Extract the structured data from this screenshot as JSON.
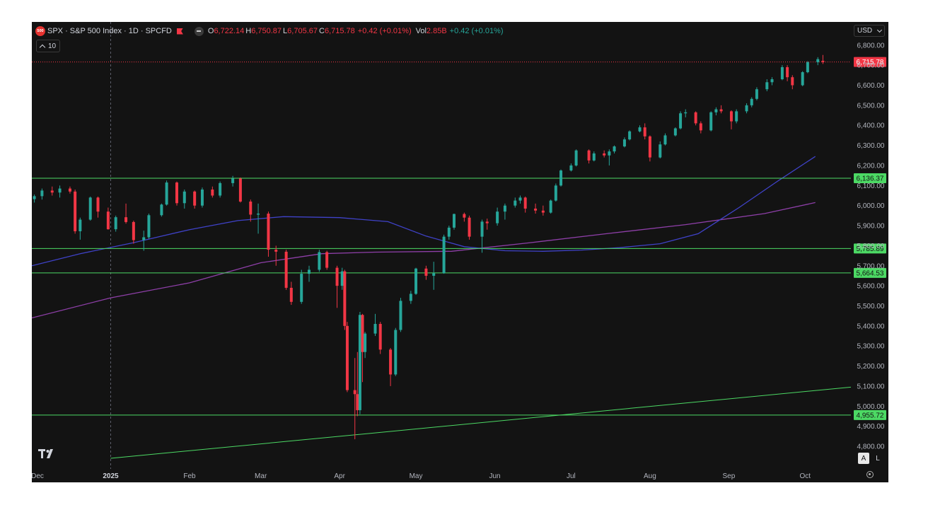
{
  "header": {
    "logo_text": "500",
    "title": "SPX · S&P 500 Index · 1D · SPCFD",
    "open_label": "O",
    "open_value": "6,722.14",
    "high_label": "H",
    "high_value": "6,750.87",
    "low_label": "L",
    "low_value": "6,705.67",
    "close_label": "C",
    "close_value": "6,715.78",
    "change": "+0.42 (+0.01%)",
    "vol_label": "Vol",
    "vol_value": "2.85B",
    "vol_change": "+0.42 (+0.01%)"
  },
  "layers_count": "10",
  "currency": "USD",
  "scale_buttons": {
    "auto": "A",
    "log": "L"
  },
  "colors": {
    "background": "#131313",
    "up": "#26a69a",
    "down": "#f23645",
    "level": "#4cd964",
    "ma_blue": "#3f42c8",
    "ma_purple": "#8e3fa8",
    "axis_text": "#b2b5be",
    "price_badge": "#f23645",
    "level_badge": "#4cd964"
  },
  "chart_data": {
    "type": "candlestick",
    "ylim": [
      4750,
      6850
    ],
    "y_ticks": [
      "4,800.00",
      "4,900.00",
      "5,000.00",
      "5,100.00",
      "5,200.00",
      "5,300.00",
      "5,400.00",
      "5,500.00",
      "5,600.00",
      "5,700.00",
      "5,800.00",
      "5,900.00",
      "6,000.00",
      "6,100.00",
      "6,200.00",
      "6,300.00",
      "6,400.00",
      "6,500.00",
      "6,600.00",
      "6,700.00",
      "6,800.00"
    ],
    "x_labels": [
      {
        "text": "Dec",
        "date": "2024-12-01"
      },
      {
        "text": "2025",
        "date": "2025-01-01"
      },
      {
        "text": "Feb",
        "date": "2025-02-01"
      },
      {
        "text": "Mar",
        "date": "2025-03-01"
      },
      {
        "text": "Apr",
        "date": "2025-04-01"
      },
      {
        "text": "May",
        "date": "2025-05-01"
      },
      {
        "text": "Jun",
        "date": "2025-06-01"
      },
      {
        "text": "Jul",
        "date": "2025-07-01"
      },
      {
        "text": "Aug",
        "date": "2025-08-01"
      },
      {
        "text": "Sep",
        "date": "2025-09-01"
      },
      {
        "text": "Oct",
        "date": "2025-10-01"
      }
    ],
    "x_range": [
      "2024-12-01",
      "2025-10-19"
    ],
    "current_price": {
      "value": 6715.78,
      "label": "6,715.78"
    },
    "horizontal_levels": [
      {
        "value": 6136.37,
        "label": "6,136.37"
      },
      {
        "value": 5785.89,
        "label": "5,785.89"
      },
      {
        "value": 5664.53,
        "label": "5,664.53"
      },
      {
        "value": 4955.72,
        "label": "4,955.72"
      }
    ],
    "trendline": {
      "start": {
        "date": "2025-01-01",
        "value": 4740
      },
      "end": {
        "date": "2025-10-19",
        "value": 5095
      }
    },
    "ma_blue": {
      "dates": [
        "2024-12-01",
        "2024-12-20",
        "2025-01-10",
        "2025-02-01",
        "2025-02-20",
        "2025-03-10",
        "2025-04-01",
        "2025-04-20",
        "2025-05-05",
        "2025-05-20",
        "2025-06-05",
        "2025-06-20",
        "2025-07-05",
        "2025-07-20",
        "2025-08-05",
        "2025-08-20",
        "2025-09-05",
        "2025-09-20",
        "2025-10-05"
      ],
      "values": [
        5700,
        5760,
        5815,
        5880,
        5925,
        5945,
        5940,
        5920,
        5848,
        5795,
        5775,
        5772,
        5778,
        5790,
        5810,
        5860,
        5990,
        6120,
        6245
      ]
    },
    "ma_purple": {
      "dates": [
        "2024-12-01",
        "2025-01-01",
        "2025-02-01",
        "2025-03-01",
        "2025-03-25",
        "2025-04-15",
        "2025-05-15",
        "2025-06-15",
        "2025-07-15",
        "2025-08-15",
        "2025-09-15",
        "2025-10-05"
      ],
      "values": [
        5440,
        5540,
        5615,
        5715,
        5760,
        5768,
        5772,
        5815,
        5860,
        5905,
        5960,
        6015
      ]
    },
    "candles": [
      {
        "date": "2024-12-02",
        "open": 6032,
        "high": 6055,
        "low": 6015,
        "close": 6047
      },
      {
        "date": "2024-12-05",
        "open": 6047,
        "high": 6085,
        "low": 6030,
        "close": 6075
      },
      {
        "date": "2024-12-09",
        "open": 6075,
        "high": 6095,
        "low": 6050,
        "close": 6065
      },
      {
        "date": "2024-12-12",
        "open": 6065,
        "high": 6100,
        "low": 6040,
        "close": 6085
      },
      {
        "date": "2024-12-16",
        "open": 6085,
        "high": 6095,
        "low": 6060,
        "close": 6070
      },
      {
        "date": "2024-12-18",
        "open": 6070,
        "high": 6080,
        "low": 5860,
        "close": 5872
      },
      {
        "date": "2024-12-20",
        "open": 5872,
        "high": 5940,
        "low": 5830,
        "close": 5930
      },
      {
        "date": "2024-12-24",
        "open": 5930,
        "high": 6045,
        "low": 5925,
        "close": 6040
      },
      {
        "date": "2024-12-27",
        "open": 6040,
        "high": 6045,
        "low": 5940,
        "close": 5970
      },
      {
        "date": "2024-12-31",
        "open": 5970,
        "high": 5990,
        "low": 5880,
        "close": 5882
      },
      {
        "date": "2025-01-03",
        "open": 5882,
        "high": 5950,
        "low": 5870,
        "close": 5942
      },
      {
        "date": "2025-01-07",
        "open": 5942,
        "high": 6010,
        "low": 5910,
        "close": 5918
      },
      {
        "date": "2025-01-10",
        "open": 5918,
        "high": 5925,
        "low": 5810,
        "close": 5828
      },
      {
        "date": "2025-01-14",
        "open": 5828,
        "high": 5875,
        "low": 5775,
        "close": 5842
      },
      {
        "date": "2025-01-16",
        "open": 5842,
        "high": 5960,
        "low": 5835,
        "close": 5952
      },
      {
        "date": "2025-01-21",
        "open": 5952,
        "high": 6010,
        "low": 5945,
        "close": 6005
      },
      {
        "date": "2025-01-23",
        "open": 6005,
        "high": 6125,
        "low": 6000,
        "close": 6115
      },
      {
        "date": "2025-01-27",
        "open": 6115,
        "high": 6120,
        "low": 6000,
        "close": 6012
      },
      {
        "date": "2025-01-30",
        "open": 6012,
        "high": 6080,
        "low": 5985,
        "close": 6070
      },
      {
        "date": "2025-02-03",
        "open": 6070,
        "high": 6075,
        "low": 5985,
        "close": 6000
      },
      {
        "date": "2025-02-06",
        "open": 6000,
        "high": 6090,
        "low": 5990,
        "close": 6080
      },
      {
        "date": "2025-02-10",
        "open": 6080,
        "high": 6095,
        "low": 6040,
        "close": 6050
      },
      {
        "date": "2025-02-13",
        "open": 6050,
        "high": 6120,
        "low": 6040,
        "close": 6112
      },
      {
        "date": "2025-02-18",
        "open": 6112,
        "high": 6148,
        "low": 6095,
        "close": 6135
      },
      {
        "date": "2025-02-21",
        "open": 6135,
        "high": 6140,
        "low": 6015,
        "close": 6020
      },
      {
        "date": "2025-02-25",
        "open": 6020,
        "high": 6030,
        "low": 5920,
        "close": 5955
      },
      {
        "date": "2025-02-28",
        "open": 5955,
        "high": 6010,
        "low": 5860,
        "close": 5960
      },
      {
        "date": "2025-03-04",
        "open": 5960,
        "high": 5970,
        "low": 5745,
        "close": 5780
      },
      {
        "date": "2025-03-07",
        "open": 5780,
        "high": 5800,
        "low": 5700,
        "close": 5770
      },
      {
        "date": "2025-03-11",
        "open": 5770,
        "high": 5780,
        "low": 5580,
        "close": 5590
      },
      {
        "date": "2025-03-13",
        "open": 5590,
        "high": 5620,
        "low": 5505,
        "close": 5520
      },
      {
        "date": "2025-03-17",
        "open": 5520,
        "high": 5680,
        "low": 5510,
        "close": 5660
      },
      {
        "date": "2025-03-20",
        "open": 5660,
        "high": 5700,
        "low": 5620,
        "close": 5680
      },
      {
        "date": "2025-03-24",
        "open": 5680,
        "high": 5780,
        "low": 5670,
        "close": 5768
      },
      {
        "date": "2025-03-27",
        "open": 5768,
        "high": 5775,
        "low": 5680,
        "close": 5690
      },
      {
        "date": "2025-03-31",
        "open": 5690,
        "high": 5700,
        "low": 5490,
        "close": 5600
      },
      {
        "date": "2025-04-02",
        "open": 5600,
        "high": 5690,
        "low": 5580,
        "close": 5672
      },
      {
        "date": "2025-04-03",
        "open": 5672,
        "high": 5680,
        "low": 5380,
        "close": 5400
      },
      {
        "date": "2025-04-04",
        "open": 5400,
        "high": 5420,
        "low": 5070,
        "close": 5080
      },
      {
        "date": "2025-04-07",
        "open": 5080,
        "high": 5240,
        "low": 4835,
        "close": 5060
      },
      {
        "date": "2025-04-08",
        "open": 5060,
        "high": 5270,
        "low": 4950,
        "close": 4980
      },
      {
        "date": "2025-04-09",
        "open": 4980,
        "high": 5470,
        "low": 4960,
        "close": 5455
      },
      {
        "date": "2025-04-10",
        "open": 5455,
        "high": 5460,
        "low": 5120,
        "close": 5270
      },
      {
        "date": "2025-04-11",
        "open": 5270,
        "high": 5370,
        "low": 5240,
        "close": 5362
      },
      {
        "date": "2025-04-15",
        "open": 5362,
        "high": 5460,
        "low": 5350,
        "close": 5410
      },
      {
        "date": "2025-04-17",
        "open": 5410,
        "high": 5420,
        "low": 5260,
        "close": 5282
      },
      {
        "date": "2025-04-21",
        "open": 5282,
        "high": 5290,
        "low": 5100,
        "close": 5158
      },
      {
        "date": "2025-04-23",
        "open": 5158,
        "high": 5390,
        "low": 5150,
        "close": 5380
      },
      {
        "date": "2025-04-25",
        "open": 5380,
        "high": 5540,
        "low": 5370,
        "close": 5525
      },
      {
        "date": "2025-04-29",
        "open": 5525,
        "high": 5575,
        "low": 5510,
        "close": 5560
      },
      {
        "date": "2025-05-01",
        "open": 5560,
        "high": 5690,
        "low": 5555,
        "close": 5686
      },
      {
        "date": "2025-05-05",
        "open": 5686,
        "high": 5700,
        "low": 5630,
        "close": 5650
      },
      {
        "date": "2025-05-08",
        "open": 5650,
        "high": 5720,
        "low": 5580,
        "close": 5663
      },
      {
        "date": "2025-05-12",
        "open": 5663,
        "high": 5855,
        "low": 5660,
        "close": 5845
      },
      {
        "date": "2025-05-14",
        "open": 5845,
        "high": 5900,
        "low": 5830,
        "close": 5890
      },
      {
        "date": "2025-05-16",
        "open": 5890,
        "high": 5960,
        "low": 5880,
        "close": 5958
      },
      {
        "date": "2025-05-20",
        "open": 5958,
        "high": 5965,
        "low": 5920,
        "close": 5940
      },
      {
        "date": "2025-05-22",
        "open": 5940,
        "high": 5950,
        "low": 5830,
        "close": 5845
      },
      {
        "date": "2025-05-27",
        "open": 5845,
        "high": 5930,
        "low": 5765,
        "close": 5920
      },
      {
        "date": "2025-05-29",
        "open": 5920,
        "high": 5935,
        "low": 5880,
        "close": 5912
      },
      {
        "date": "2025-06-02",
        "open": 5912,
        "high": 5990,
        "low": 5900,
        "close": 5970
      },
      {
        "date": "2025-06-05",
        "open": 5970,
        "high": 6010,
        "low": 5930,
        "close": 6000
      },
      {
        "date": "2025-06-09",
        "open": 6000,
        "high": 6040,
        "low": 5990,
        "close": 6025
      },
      {
        "date": "2025-06-11",
        "open": 6025,
        "high": 6050,
        "low": 6010,
        "close": 6040
      },
      {
        "date": "2025-06-13",
        "open": 6040,
        "high": 6045,
        "low": 5965,
        "close": 5985
      },
      {
        "date": "2025-06-17",
        "open": 5985,
        "high": 6010,
        "low": 5960,
        "close": 5975
      },
      {
        "date": "2025-06-20",
        "open": 5975,
        "high": 6000,
        "low": 5950,
        "close": 5965
      },
      {
        "date": "2025-06-23",
        "open": 5965,
        "high": 6030,
        "low": 5960,
        "close": 6025
      },
      {
        "date": "2025-06-25",
        "open": 6025,
        "high": 6110,
        "low": 6020,
        "close": 6100
      },
      {
        "date": "2025-06-27",
        "open": 6100,
        "high": 6180,
        "low": 6095,
        "close": 6175
      },
      {
        "date": "2025-07-01",
        "open": 6175,
        "high": 6210,
        "low": 6170,
        "close": 6200
      },
      {
        "date": "2025-07-03",
        "open": 6200,
        "high": 6280,
        "low": 6195,
        "close": 6275
      },
      {
        "date": "2025-07-08",
        "open": 6275,
        "high": 6280,
        "low": 6210,
        "close": 6225
      },
      {
        "date": "2025-07-10",
        "open": 6225,
        "high": 6270,
        "low": 6220,
        "close": 6260
      },
      {
        "date": "2025-07-14",
        "open": 6260,
        "high": 6275,
        "low": 6240,
        "close": 6250
      },
      {
        "date": "2025-07-16",
        "open": 6250,
        "high": 6280,
        "low": 6200,
        "close": 6270
      },
      {
        "date": "2025-07-18",
        "open": 6270,
        "high": 6300,
        "low": 6260,
        "close": 6295
      },
      {
        "date": "2025-07-22",
        "open": 6295,
        "high": 6340,
        "low": 6290,
        "close": 6330
      },
      {
        "date": "2025-07-24",
        "open": 6330,
        "high": 6375,
        "low": 6325,
        "close": 6370
      },
      {
        "date": "2025-07-28",
        "open": 6370,
        "high": 6400,
        "low": 6365,
        "close": 6390
      },
      {
        "date": "2025-07-30",
        "open": 6390,
        "high": 6410,
        "low": 6330,
        "close": 6345
      },
      {
        "date": "2025-08-01",
        "open": 6345,
        "high": 6350,
        "low": 6220,
        "close": 6240
      },
      {
        "date": "2025-08-05",
        "open": 6240,
        "high": 6320,
        "low": 6235,
        "close": 6305
      },
      {
        "date": "2025-08-07",
        "open": 6305,
        "high": 6360,
        "low": 6300,
        "close": 6350
      },
      {
        "date": "2025-08-11",
        "open": 6350,
        "high": 6390,
        "low": 6345,
        "close": 6385
      },
      {
        "date": "2025-08-13",
        "open": 6385,
        "high": 6470,
        "low": 6380,
        "close": 6460
      },
      {
        "date": "2025-08-15",
        "open": 6460,
        "high": 6480,
        "low": 6440,
        "close": 6465
      },
      {
        "date": "2025-08-19",
        "open": 6465,
        "high": 6470,
        "low": 6400,
        "close": 6410
      },
      {
        "date": "2025-08-21",
        "open": 6410,
        "high": 6420,
        "low": 6360,
        "close": 6375
      },
      {
        "date": "2025-08-25",
        "open": 6375,
        "high": 6470,
        "low": 6370,
        "close": 6465
      },
      {
        "date": "2025-08-27",
        "open": 6465,
        "high": 6490,
        "low": 6450,
        "close": 6480
      },
      {
        "date": "2025-08-29",
        "open": 6480,
        "high": 6500,
        "low": 6460,
        "close": 6470
      },
      {
        "date": "2025-09-02",
        "open": 6470,
        "high": 6475,
        "low": 6380,
        "close": 6420
      },
      {
        "date": "2025-09-04",
        "open": 6420,
        "high": 6480,
        "low": 6410,
        "close": 6470
      },
      {
        "date": "2025-09-08",
        "open": 6470,
        "high": 6510,
        "low": 6460,
        "close": 6500
      },
      {
        "date": "2025-09-10",
        "open": 6500,
        "high": 6540,
        "low": 6490,
        "close": 6532
      },
      {
        "date": "2025-09-12",
        "open": 6532,
        "high": 6590,
        "low": 6525,
        "close": 6580
      },
      {
        "date": "2025-09-16",
        "open": 6580,
        "high": 6630,
        "low": 6570,
        "close": 6615
      },
      {
        "date": "2025-09-18",
        "open": 6615,
        "high": 6640,
        "low": 6600,
        "close": 6630
      },
      {
        "date": "2025-09-22",
        "open": 6630,
        "high": 6700,
        "low": 6625,
        "close": 6690
      },
      {
        "date": "2025-09-24",
        "open": 6690,
        "high": 6700,
        "low": 6620,
        "close": 6640
      },
      {
        "date": "2025-09-26",
        "open": 6640,
        "high": 6650,
        "low": 6580,
        "close": 6600
      },
      {
        "date": "2025-09-30",
        "open": 6600,
        "high": 6670,
        "low": 6595,
        "close": 6665
      },
      {
        "date": "2025-10-02",
        "open": 6665,
        "high": 6720,
        "low": 6660,
        "close": 6715
      },
      {
        "date": "2025-10-06",
        "open": 6715,
        "high": 6740,
        "low": 6700,
        "close": 6730
      },
      {
        "date": "2025-10-08",
        "open": 6722,
        "high": 6751,
        "low": 6706,
        "close": 6716
      }
    ]
  }
}
